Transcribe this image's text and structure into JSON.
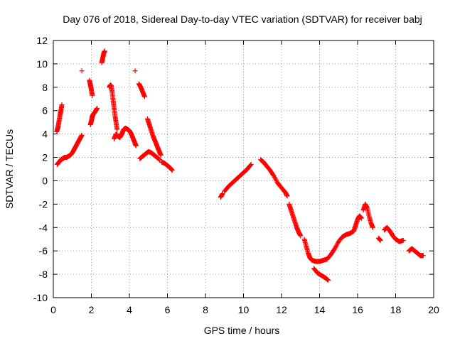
{
  "chart_data": {
    "type": "scatter",
    "title": "Day 076 of 2018, Sidereal Day-to-day VTEC variation (SDTVAR) for receiver babj",
    "xlabel": "GPS time / hours",
    "ylabel": "SDTVAR / TECUs",
    "xlim": [
      0,
      20
    ],
    "ylim": [
      -10,
      12
    ],
    "xticks": [
      0,
      2,
      4,
      6,
      8,
      10,
      12,
      14,
      16,
      18,
      20
    ],
    "yticks": [
      -10,
      -8,
      -6,
      -4,
      -2,
      0,
      2,
      4,
      6,
      8,
      10,
      12
    ],
    "grid": true,
    "marker": "+",
    "marker_color": "#ff0000",
    "series": [
      {
        "name": "SDTVAR",
        "segments": [
          [
            [
              0.2,
              1.4
            ],
            [
              0.3,
              1.6
            ],
            [
              0.4,
              1.8
            ],
            [
              0.5,
              1.9
            ],
            [
              0.6,
              2.0
            ],
            [
              0.7,
              2.0
            ],
            [
              0.8,
              2.1
            ],
            [
              0.9,
              2.2
            ],
            [
              1.0,
              2.4
            ],
            [
              1.1,
              2.7
            ],
            [
              1.2,
              3.0
            ],
            [
              1.3,
              3.3
            ],
            [
              1.4,
              3.6
            ],
            [
              1.5,
              3.9
            ]
          ],
          [
            [
              0.18,
              4.2
            ],
            [
              0.25,
              4.6
            ],
            [
              0.3,
              5.1
            ],
            [
              0.35,
              5.6
            ],
            [
              0.4,
              6.0
            ],
            [
              0.45,
              6.5
            ]
          ],
          [
            [
              1.5,
              9.4
            ]
          ],
          [
            [
              1.9,
              8.6
            ],
            [
              1.95,
              8.2
            ],
            [
              2.0,
              7.8
            ],
            [
              2.05,
              7.3
            ]
          ],
          [
            [
              1.95,
              4.8
            ],
            [
              2.0,
              5.1
            ],
            [
              2.05,
              5.5
            ],
            [
              2.1,
              5.7
            ],
            [
              2.2,
              5.9
            ],
            [
              2.3,
              6.2
            ]
          ],
          [
            [
              2.55,
              10.1
            ],
            [
              2.6,
              10.5
            ],
            [
              2.65,
              10.9
            ],
            [
              2.7,
              11.1
            ]
          ],
          [
            [
              2.95,
              8.0
            ],
            [
              3.0,
              8.2
            ],
            [
              3.05,
              8.1
            ],
            [
              3.1,
              7.5
            ],
            [
              3.15,
              6.8
            ],
            [
              3.2,
              6.2
            ],
            [
              3.25,
              5.5
            ],
            [
              3.3,
              5.0
            ],
            [
              3.35,
              4.4
            ]
          ],
          [
            [
              3.2,
              3.6
            ],
            [
              3.3,
              4.0
            ],
            [
              3.4,
              3.8
            ],
            [
              3.5,
              3.7
            ],
            [
              3.6,
              4.0
            ],
            [
              3.7,
              4.4
            ],
            [
              3.8,
              4.5
            ],
            [
              3.9,
              4.4
            ],
            [
              4.0,
              4.3
            ],
            [
              4.1,
              4.0
            ],
            [
              4.2,
              3.6
            ],
            [
              4.3,
              3.2
            ],
            [
              4.35,
              3.0
            ]
          ],
          [
            [
              4.3,
              9.4
            ]
          ],
          [
            [
              4.5,
              8.3
            ],
            [
              4.6,
              8.0
            ],
            [
              4.7,
              7.6
            ],
            [
              4.8,
              7.2
            ]
          ],
          [
            [
              4.55,
              1.9
            ],
            [
              4.7,
              2.1
            ],
            [
              4.85,
              2.3
            ],
            [
              5.0,
              2.5
            ],
            [
              5.15,
              2.4
            ],
            [
              5.3,
              2.2
            ],
            [
              5.45,
              2.0
            ],
            [
              5.6,
              1.8
            ]
          ],
          [
            [
              4.95,
              5.3
            ],
            [
              5.05,
              4.8
            ],
            [
              5.15,
              4.3
            ],
            [
              5.25,
              3.8
            ],
            [
              5.35,
              3.4
            ],
            [
              5.45,
              3.0
            ],
            [
              5.55,
              2.6
            ],
            [
              5.65,
              2.2
            ]
          ],
          [
            [
              5.7,
              1.6
            ],
            [
              5.85,
              1.5
            ],
            [
              6.0,
              1.3
            ],
            [
              6.15,
              1.1
            ],
            [
              6.25,
              0.9
            ]
          ],
          [
            [
              8.8,
              -1.4
            ],
            [
              8.9,
              -1.1
            ]
          ],
          [
            [
              9.0,
              -0.9
            ],
            [
              9.2,
              -0.5
            ],
            [
              9.4,
              -0.2
            ],
            [
              9.6,
              0.1
            ],
            [
              9.8,
              0.4
            ],
            [
              10.0,
              0.7
            ],
            [
              10.2,
              1.0
            ],
            [
              10.4,
              1.4
            ]
          ],
          [
            [
              10.9,
              1.8
            ],
            [
              11.05,
              1.6
            ],
            [
              11.2,
              1.3
            ],
            [
              11.4,
              0.9
            ],
            [
              11.6,
              0.4
            ],
            [
              11.8,
              -0.2
            ],
            [
              12.0,
              -0.6
            ],
            [
              12.2,
              -1.0
            ],
            [
              12.3,
              -1.3
            ]
          ],
          [
            [
              12.4,
              -2.0
            ],
            [
              12.5,
              -2.5
            ],
            [
              12.6,
              -3.0
            ],
            [
              12.7,
              -3.5
            ],
            [
              12.8,
              -4.0
            ],
            [
              12.9,
              -4.4
            ],
            [
              13.0,
              -4.7
            ]
          ],
          [
            [
              13.2,
              -5.0
            ],
            [
              13.3,
              -5.6
            ],
            [
              13.4,
              -6.2
            ],
            [
              13.5,
              -6.6
            ],
            [
              13.6,
              -6.8
            ],
            [
              13.8,
              -6.9
            ],
            [
              14.0,
              -6.9
            ],
            [
              14.2,
              -6.8
            ],
            [
              14.4,
              -6.7
            ],
            [
              14.6,
              -6.3
            ],
            [
              14.8,
              -5.8
            ],
            [
              15.0,
              -5.2
            ],
            [
              15.2,
              -4.8
            ],
            [
              15.4,
              -4.6
            ],
            [
              15.6,
              -4.5
            ],
            [
              15.8,
              -4.3
            ],
            [
              15.9,
              -3.8
            ],
            [
              16.0,
              -3.3
            ],
            [
              16.1,
              -3.0
            ],
            [
              16.2,
              -3.2
            ]
          ],
          [
            [
              13.7,
              -7.5
            ],
            [
              13.9,
              -7.9
            ],
            [
              14.1,
              -8.1
            ],
            [
              14.3,
              -8.3
            ],
            [
              14.45,
              -8.5
            ]
          ],
          [
            [
              16.3,
              -2.5
            ],
            [
              16.4,
              -2.0
            ],
            [
              16.5,
              -2.3
            ],
            [
              16.6,
              -3.0
            ],
            [
              16.7,
              -3.6
            ],
            [
              16.8,
              -4.0
            ]
          ],
          [
            [
              17.1,
              -4.9
            ],
            [
              17.2,
              -5.1
            ]
          ],
          [
            [
              17.4,
              -4.2
            ],
            [
              17.55,
              -4.0
            ],
            [
              17.7,
              -4.3
            ],
            [
              17.85,
              -4.7
            ],
            [
              18.0,
              -5.0
            ],
            [
              18.2,
              -5.2
            ],
            [
              18.4,
              -5.1
            ]
          ],
          [
            [
              18.7,
              -6.0
            ],
            [
              18.85,
              -5.8
            ],
            [
              19.0,
              -6.0
            ],
            [
              19.15,
              -6.2
            ],
            [
              19.3,
              -6.4
            ],
            [
              19.45,
              -6.4
            ]
          ]
        ]
      }
    ]
  }
}
